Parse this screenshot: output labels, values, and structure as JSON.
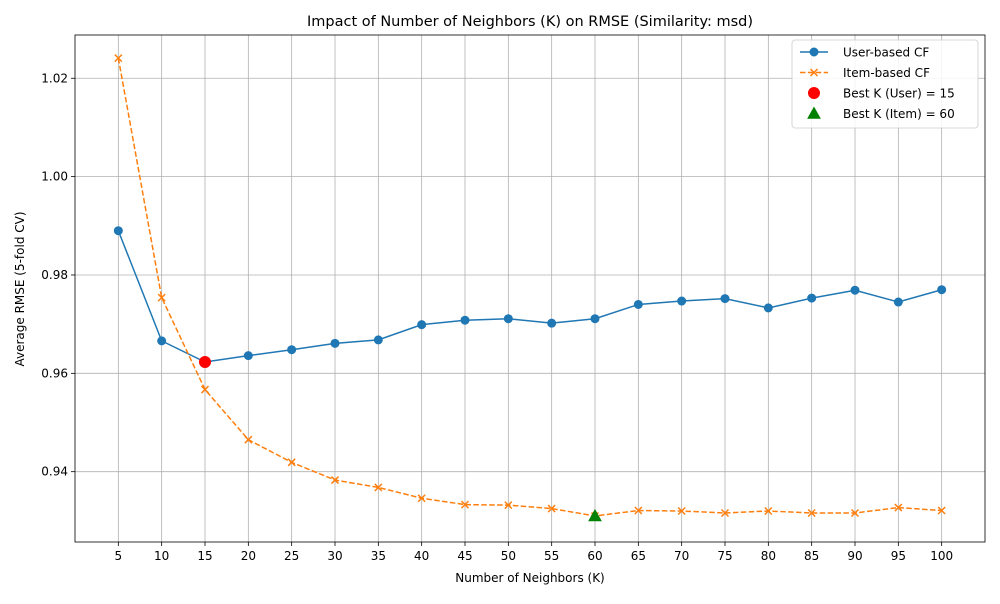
{
  "chart_data": {
    "type": "line",
    "title": "Impact of Number of Neighbors (K) on RMSE (Similarity: msd)",
    "xlabel": "Number of Neighbors (K)",
    "ylabel": "Average RMSE (5-fold CV)",
    "x": [
      5,
      10,
      15,
      20,
      25,
      30,
      35,
      40,
      45,
      50,
      55,
      60,
      65,
      70,
      75,
      80,
      85,
      90,
      95,
      100
    ],
    "xticks": [
      5,
      10,
      15,
      20,
      25,
      30,
      35,
      40,
      45,
      50,
      55,
      60,
      65,
      70,
      75,
      80,
      85,
      90,
      95,
      100
    ],
    "yticks": [
      0.94,
      0.96,
      0.98,
      1.0,
      1.02
    ],
    "ytick_labels": [
      "0.94",
      "0.96",
      "0.98",
      "1.00",
      "1.02"
    ],
    "xlim": [
      0,
      105
    ],
    "ylim": [
      0.9257,
      1.0288
    ],
    "grid": true,
    "legend_position": "upper right",
    "series": [
      {
        "name": "User-based CF",
        "color": "#1f77b4",
        "marker": "circle",
        "linestyle": "solid",
        "values": [
          0.989,
          0.9666,
          0.9623,
          0.9636,
          0.9648,
          0.9661,
          0.9668,
          0.9699,
          0.9708,
          0.9711,
          0.9702,
          0.9711,
          0.974,
          0.9747,
          0.9752,
          0.9733,
          0.9753,
          0.9769,
          0.9745,
          0.977
        ]
      },
      {
        "name": "Item-based CF",
        "color": "#ff7f0e",
        "marker": "x",
        "linestyle": "dashed",
        "values": [
          1.0241,
          0.9754,
          0.9567,
          0.9465,
          0.9419,
          0.9383,
          0.9368,
          0.9346,
          0.9333,
          0.9332,
          0.9325,
          0.931,
          0.9321,
          0.932,
          0.9316,
          0.932,
          0.9316,
          0.9316,
          0.9327,
          0.9321
        ]
      }
    ],
    "highlights": [
      {
        "name": "Best K (User) = 15",
        "x": 15,
        "y": 0.9623,
        "color": "#ff0000",
        "marker": "circle"
      },
      {
        "name": "Best K (Item) = 60",
        "x": 60,
        "y": 0.931,
        "color": "#008000",
        "marker": "triangle"
      }
    ]
  }
}
